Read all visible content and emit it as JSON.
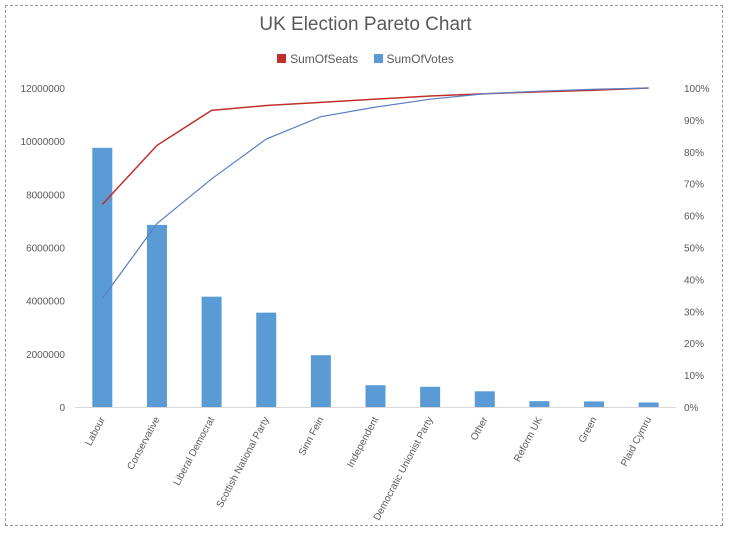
{
  "chart_data": {
    "type": "bar",
    "title": "UK Election Pareto Chart",
    "categories": [
      "Labour",
      "Conservative",
      "Liberal Democrat",
      "Scottish National Party",
      "Sinn Fein",
      "Independent",
      "Democratic Unionist Party",
      "Other",
      "Reform UK",
      "Green",
      "Plaid Cymru"
    ],
    "series": [
      {
        "name": "SumOfVotes",
        "kind": "bar",
        "axis": "left",
        "color": "#5b9bd5",
        "values": [
          9750000,
          6850000,
          4150000,
          3550000,
          1950000,
          820000,
          760000,
          590000,
          220000,
          210000,
          170000
        ]
      },
      {
        "name": "SumOfSeats",
        "kind": "line",
        "axis": "right",
        "color": "#c0302b",
        "values": [
          0.635,
          0.82,
          0.93,
          0.945,
          0.955,
          0.965,
          0.975,
          0.982,
          0.988,
          0.993,
          1.0
        ]
      },
      {
        "name": "SumOfVotes",
        "kind": "line",
        "axis": "right",
        "color": "#5a7fc4",
        "values": [
          0.34,
          0.575,
          0.715,
          0.84,
          0.91,
          0.94,
          0.965,
          0.982,
          0.99,
          0.996,
          1.0
        ]
      }
    ],
    "y_left": {
      "ylim": [
        0,
        12000000
      ],
      "ticks": [
        "0",
        "2000000",
        "4000000",
        "6000000",
        "8000000",
        "10000000",
        "12000000"
      ]
    },
    "y_right": {
      "ylim": [
        0,
        1
      ],
      "ticks": [
        "0%",
        "10%",
        "20%",
        "30%",
        "40%",
        "50%",
        "60%",
        "70%",
        "80%",
        "90%",
        "100%"
      ]
    },
    "legend": {
      "position": "top",
      "entries": [
        {
          "label": "SumOfSeats",
          "color": "#c0302b"
        },
        {
          "label": "SumOfVotes",
          "color": "#5b9bd5"
        }
      ]
    },
    "grid": false
  }
}
